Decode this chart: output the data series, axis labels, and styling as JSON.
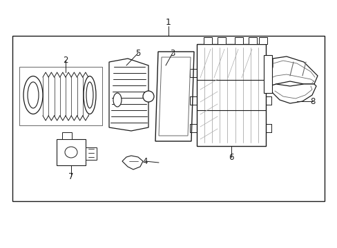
{
  "bg_color": "#ffffff",
  "line_color": "#1a1a1a",
  "gray_color": "#666666",
  "light_gray": "#aaaaaa",
  "fig_width": 4.89,
  "fig_height": 3.6,
  "dpi": 100
}
